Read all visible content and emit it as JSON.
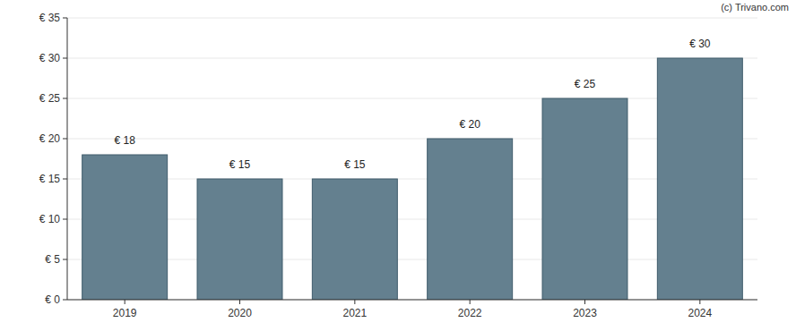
{
  "chart_data": {
    "type": "bar",
    "source": "(c) Trivano.com",
    "categories": [
      "2019",
      "2020",
      "2021",
      "2022",
      "2023",
      "2024"
    ],
    "values": [
      18,
      15,
      15,
      20,
      25,
      30
    ],
    "value_labels": [
      "€ 18",
      "€ 15",
      "€ 15",
      "€ 20",
      "€ 25",
      "€ 30"
    ],
    "data_labels": true,
    "color": "#64808f",
    "ylim": [
      0,
      35
    ],
    "yticks": [
      {
        "value": 0,
        "label": "€ 0"
      },
      {
        "value": 5,
        "label": "€ 5"
      },
      {
        "value": 10,
        "label": "€ 10"
      },
      {
        "value": 15,
        "label": "€ 15"
      },
      {
        "value": 20,
        "label": "€ 20"
      },
      {
        "value": 25,
        "label": "€ 25"
      },
      {
        "value": 30,
        "label": "€ 30"
      },
      {
        "value": 35,
        "label": "€ 35"
      }
    ],
    "grid": true
  }
}
